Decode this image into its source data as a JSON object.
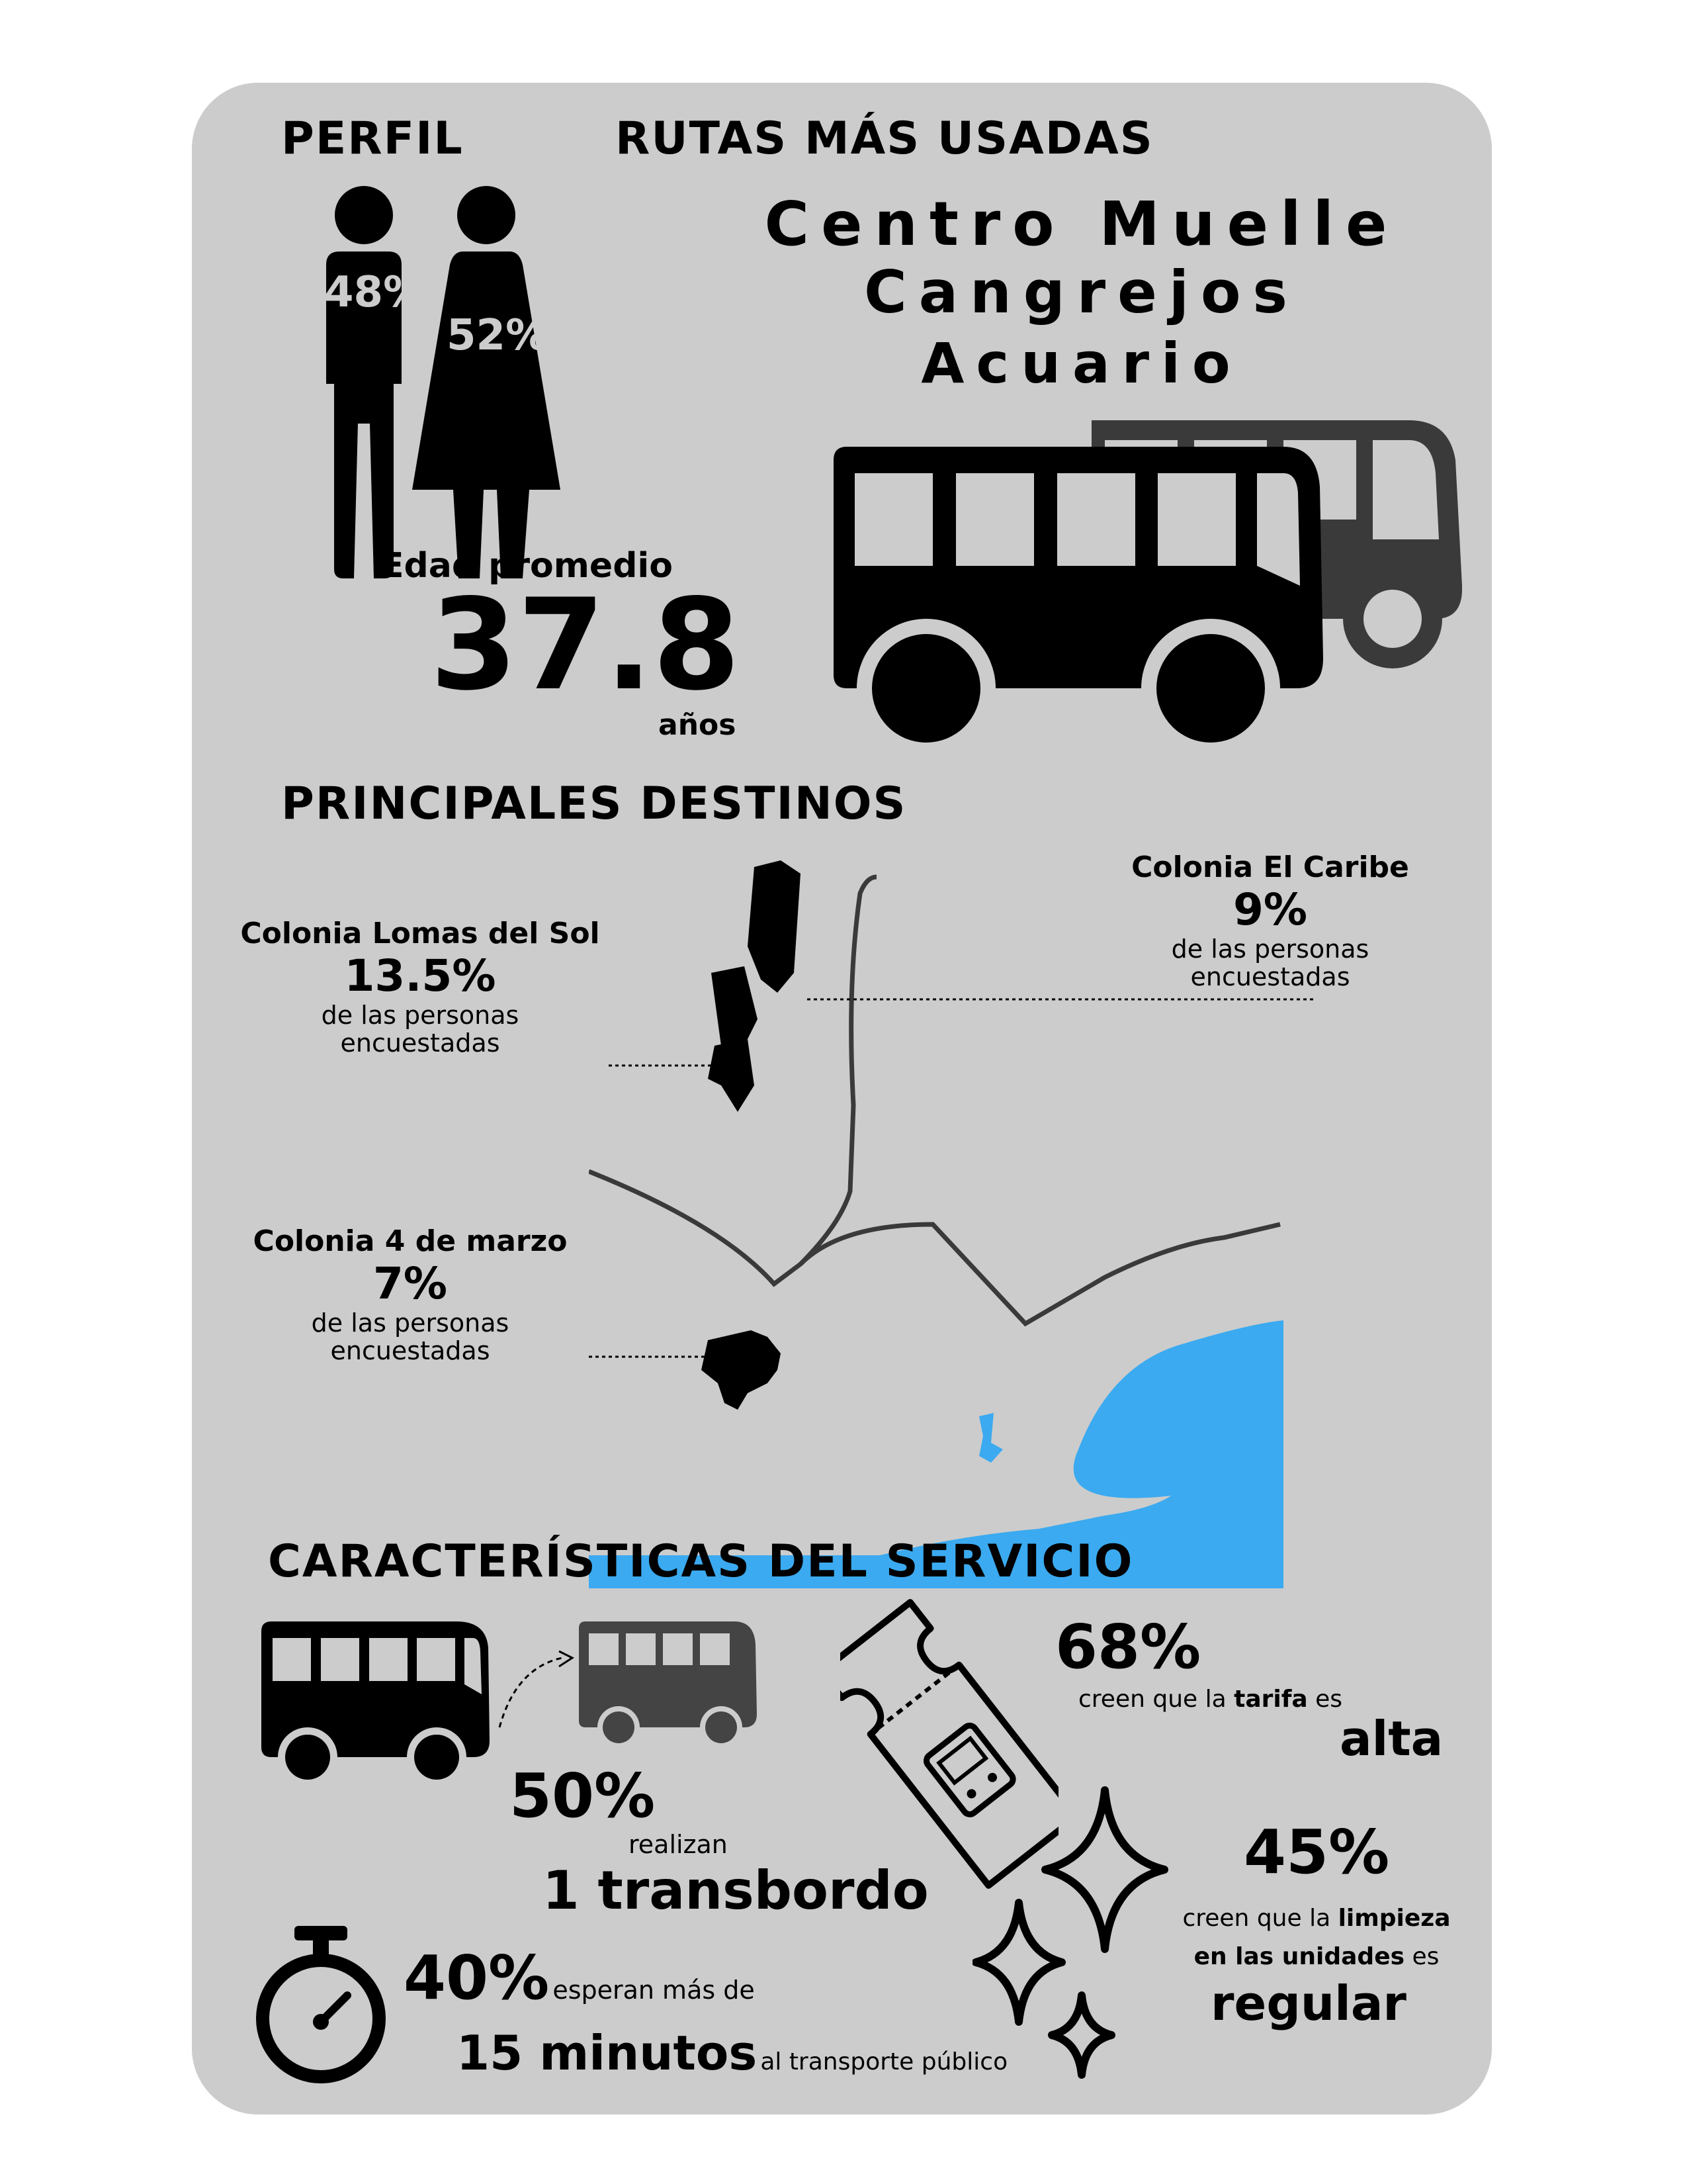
{
  "profile": {
    "heading": "PERFIL",
    "male_pct": "48%",
    "female_pct": "52%",
    "age_label": "Edad promedio",
    "age_value": "37.8",
    "age_unit": "años"
  },
  "routes": {
    "heading": "RUTAS MÁS USADAS",
    "items": [
      "Centro Muelle",
      "Cangrejos",
      "Acuario"
    ]
  },
  "destinations": {
    "heading": "PRINCIPALES DESTINOS",
    "items": [
      {
        "name": "Colonia Lomas del Sol",
        "pct": "13.5%",
        "sub1": "de las personas",
        "sub2": "encuestadas"
      },
      {
        "name": "Colonia El Caribe",
        "pct": "9%",
        "sub1": "de las personas",
        "sub2": "encuestadas"
      },
      {
        "name": "Colonia 4 de marzo",
        "pct": "7%",
        "sub1": "de las personas",
        "sub2": "encuestadas"
      }
    ]
  },
  "service": {
    "heading": "CARACTERÍSTICAS DEL SERVICIO",
    "transfer": {
      "pct": "50%",
      "sub": "realizan",
      "value": "1 transbordo"
    },
    "fare": {
      "pct": "68%",
      "pre": "creen que la ",
      "key": "tarifa",
      "post": " es",
      "value": "alta"
    },
    "cleaning": {
      "pct": "45%",
      "pre": "creen que la ",
      "key1": "limpieza",
      "key2": "en las unidades",
      "post": " es",
      "value": "regular"
    },
    "wait": {
      "pct": "40%",
      "mid": "esperan más de",
      "value": "15 minutos",
      "post": "al transporte público"
    }
  },
  "colors": {
    "card": "#cccccc",
    "water": "#3baaf0",
    "ink": "#000000",
    "bus_back": "#3a3a3a",
    "bus_small": "#444444"
  },
  "icons": [
    "male-icon",
    "female-icon",
    "bus-icon",
    "map",
    "ticket-icon",
    "sparkle-icon",
    "stopwatch-icon"
  ]
}
